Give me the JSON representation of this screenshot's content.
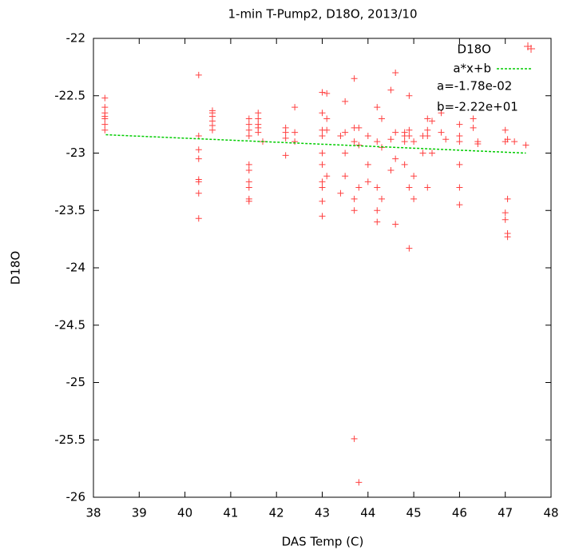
{
  "chart_data": {
    "type": "scatter",
    "title": "1-min T-Pump2, D18O, 2013/10",
    "x_label": "DAS Temp (C)",
    "y_label": "D18O",
    "xlim": [
      38,
      48
    ],
    "ylim": [
      -26,
      -22
    ],
    "xticks": [
      38,
      39,
      40,
      41,
      42,
      43,
      44,
      45,
      46,
      47,
      48
    ],
    "yticks": [
      -26,
      -25.5,
      -25,
      -24.5,
      -24,
      -23.5,
      -23,
      -22.5,
      -22
    ],
    "grid": false,
    "legend": "top-right",
    "series": [
      {
        "name": "D18O",
        "color": "#ff4040",
        "marker": "plus",
        "x": [
          38.25,
          38.25,
          38.25,
          38.25,
          38.25,
          38.25,
          38.25,
          40.3,
          40.3,
          40.3,
          40.3,
          40.3,
          40.3,
          40.3,
          40.3,
          40.6,
          40.6,
          40.6,
          40.6,
          40.6,
          40.6,
          41.4,
          41.4,
          41.4,
          41.4,
          41.4,
          41.4,
          41.4,
          41.4,
          41.4,
          41.4,
          41.6,
          41.6,
          41.6,
          41.6,
          41.6,
          41.7,
          42.2,
          42.2,
          42.2,
          42.2,
          42.4,
          42.4,
          42.4,
          43.0,
          43.0,
          43.0,
          43.0,
          43.0,
          43.0,
          43.0,
          43.0,
          43.0,
          43.0,
          43.1,
          43.1,
          43.1,
          43.1,
          43.4,
          43.4,
          43.5,
          43.5,
          43.5,
          43.5,
          43.7,
          43.7,
          43.7,
          43.7,
          43.7,
          43.7,
          43.8,
          43.8,
          43.8,
          43.8,
          44.0,
          44.0,
          44.0,
          44.2,
          44.2,
          44.2,
          44.2,
          44.2,
          44.3,
          44.3,
          44.3,
          44.5,
          44.5,
          44.5,
          44.6,
          44.6,
          44.6,
          44.6,
          44.8,
          44.8,
          44.8,
          44.8,
          44.9,
          44.9,
          44.9,
          44.9,
          44.9,
          45.0,
          45.0,
          45.0,
          45.2,
          45.2,
          45.3,
          45.3,
          45.3,
          45.3,
          45.4,
          45.4,
          45.6,
          45.6,
          45.7,
          46.0,
          46.0,
          46.0,
          46.0,
          46.0,
          46.0,
          46.3,
          46.3,
          46.4,
          46.4,
          47.0,
          47.0,
          47.0,
          47.0,
          47.05,
          47.05,
          47.05,
          47.05,
          47.2,
          47.45
        ],
        "values": [
          -22.52,
          -22.6,
          -22.65,
          -22.68,
          -22.7,
          -22.75,
          -22.8,
          -22.32,
          -22.85,
          -22.97,
          -23.05,
          -23.25,
          -23.35,
          -23.57,
          -23.23,
          -22.63,
          -22.68,
          -22.72,
          -22.76,
          -22.8,
          -22.65,
          -22.7,
          -22.75,
          -22.8,
          -22.85,
          -23.1,
          -23.15,
          -23.3,
          -23.4,
          -23.42,
          -23.25,
          -22.7,
          -22.75,
          -22.78,
          -22.82,
          -22.65,
          -22.9,
          -22.78,
          -22.82,
          -22.87,
          -23.02,
          -22.6,
          -22.82,
          -22.9,
          -22.47,
          -22.65,
          -22.8,
          -22.85,
          -23.0,
          -23.1,
          -23.25,
          -23.3,
          -23.42,
          -23.55,
          -22.48,
          -22.7,
          -22.8,
          -23.2,
          -22.85,
          -23.35,
          -22.55,
          -22.82,
          -23.0,
          -23.2,
          -22.35,
          -22.78,
          -22.9,
          -23.4,
          -23.5,
          -25.49,
          -22.78,
          -22.93,
          -23.3,
          -25.87,
          -22.85,
          -23.1,
          -23.25,
          -22.6,
          -22.9,
          -23.3,
          -23.5,
          -23.6,
          -22.7,
          -22.95,
          -23.4,
          -22.45,
          -22.88,
          -23.15,
          -22.3,
          -22.82,
          -23.05,
          -23.62,
          -22.82,
          -22.85,
          -22.9,
          -23.1,
          -22.5,
          -22.8,
          -22.85,
          -23.3,
          -23.83,
          -22.9,
          -23.2,
          -23.4,
          -22.85,
          -23.0,
          -22.7,
          -22.8,
          -22.85,
          -23.3,
          -22.72,
          -23.0,
          -22.65,
          -22.82,
          -22.88,
          -22.75,
          -22.85,
          -22.9,
          -23.1,
          -23.3,
          -23.45,
          -22.7,
          -22.78,
          -22.9,
          -22.92,
          -22.8,
          -22.9,
          -23.52,
          -23.58,
          -22.88,
          -23.4,
          -23.7,
          -23.73,
          -22.9,
          -22.93
        ]
      },
      {
        "name": "a*x+b",
        "color": "#00cc00",
        "marker": "line",
        "x": [
          38.27,
          47.45
        ],
        "values": [
          -22.84,
          -23.0
        ]
      }
    ],
    "annotations": [
      "a=-1.78e-02",
      "b=-2.22e+01"
    ]
  }
}
